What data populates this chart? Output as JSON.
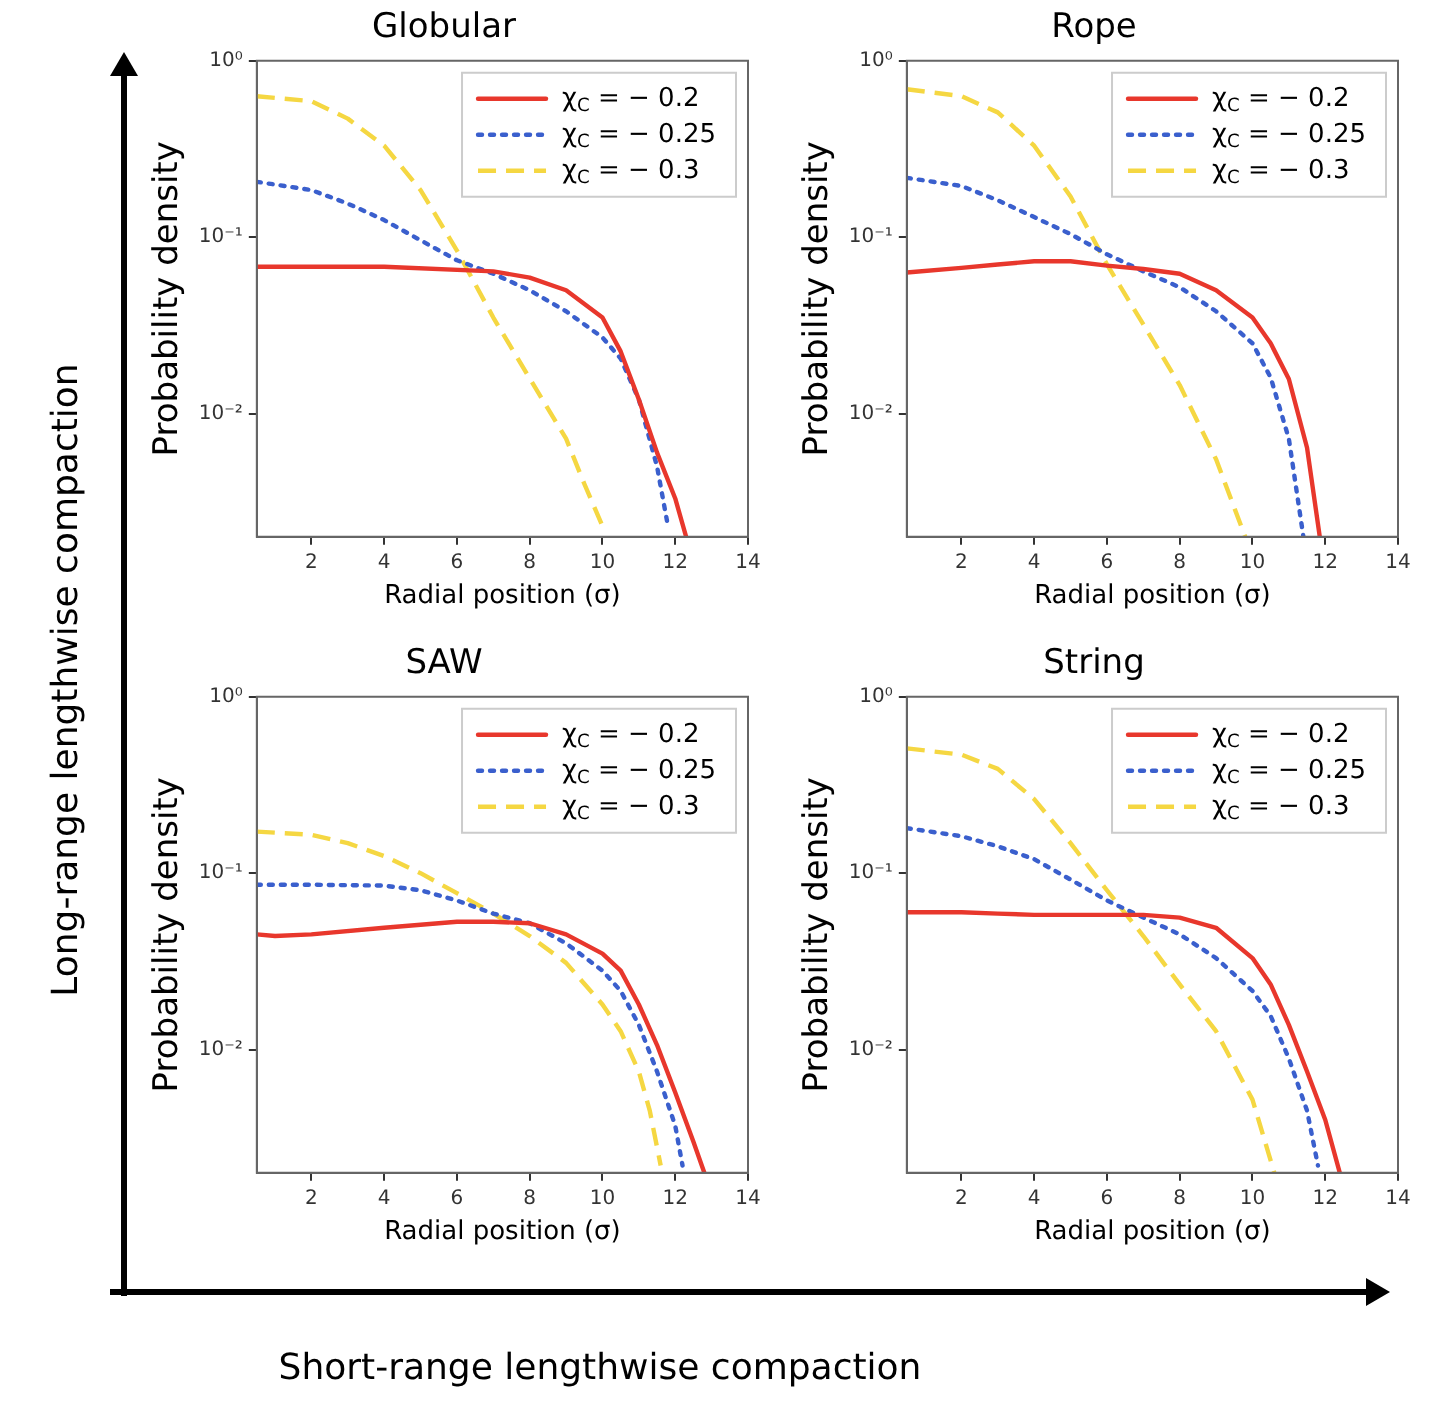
{
  "chart_data": [
    {
      "type": "line",
      "title": "Globular",
      "xlabel": "Radial position (σ)",
      "ylabel": "Probability density",
      "log": "y",
      "legend": "top right",
      "marker": "none",
      "xlim": [
        0.5,
        14
      ],
      "xticks": [
        2,
        4,
        6,
        8,
        10,
        12,
        14
      ],
      "ylim": [
        0.002,
        1
      ],
      "yticks": [
        {
          "value": 0.01,
          "label": "10⁻²"
        },
        {
          "value": 0.1,
          "label": "10⁻¹"
        },
        {
          "value": 1,
          "label": "10⁰"
        }
      ],
      "series": [
        {
          "name": "χ$_{C}$ = − 0.2",
          "color": "#e8372c",
          "line_style": "solid",
          "x": [
            0.5,
            2,
            4,
            7,
            8,
            9,
            10,
            10.5,
            11,
            11.5,
            12,
            12.3
          ],
          "values": [
            0.068,
            0.068,
            0.068,
            0.064,
            0.059,
            0.05,
            0.035,
            0.0225,
            0.012,
            0.006,
            0.0033,
            0.002
          ]
        },
        {
          "name": "χ$_{C}$ = − 0.25",
          "color": "#3a5fcd",
          "line_style": "dotted",
          "x": [
            0.5,
            2,
            3,
            4,
            5,
            6,
            7,
            8,
            9,
            10,
            10.5,
            11,
            11.5,
            11.8
          ],
          "values": [
            0.206,
            0.185,
            0.155,
            0.125,
            0.096,
            0.074,
            0.062,
            0.05,
            0.038,
            0.027,
            0.0205,
            0.012,
            0.005,
            0.0023
          ]
        },
        {
          "name": "χ$_{C}$ = − 0.3",
          "color": "#f5d742",
          "line_style": "dashed",
          "x": [
            0.5,
            2,
            3,
            4,
            5,
            6,
            7,
            8,
            9,
            9.5,
            10
          ],
          "values": [
            0.63,
            0.59,
            0.47,
            0.33,
            0.185,
            0.084,
            0.035,
            0.0158,
            0.0072,
            0.004,
            0.0023
          ]
        }
      ]
    },
    {
      "type": "line",
      "title": "Rope",
      "xlabel": "Radial position (σ)",
      "ylabel": "Probability density",
      "log": "y",
      "legend": "top right",
      "marker": "none",
      "xlim": [
        0.5,
        14
      ],
      "xticks": [
        2,
        4,
        6,
        8,
        10,
        12,
        14
      ],
      "ylim": [
        0.002,
        1
      ],
      "yticks": [
        {
          "value": 0.01,
          "label": "10⁻²"
        },
        {
          "value": 0.1,
          "label": "10⁻¹"
        },
        {
          "value": 1,
          "label": "10⁰"
        }
      ],
      "series": [
        {
          "name": "χ$_{C}$ = − 0.2",
          "color": "#e8372c",
          "line_style": "solid",
          "x": [
            0.5,
            2,
            3,
            4,
            5,
            6,
            7,
            8,
            9,
            10,
            10.5,
            11,
            11.5,
            11.85
          ],
          "values": [
            0.063,
            0.067,
            0.07,
            0.073,
            0.073,
            0.069,
            0.066,
            0.062,
            0.05,
            0.035,
            0.025,
            0.0157,
            0.0064,
            0.002
          ]
        },
        {
          "name": "χ$_{C}$ = − 0.25",
          "color": "#3a5fcd",
          "line_style": "dotted",
          "x": [
            0.5,
            2,
            3,
            4,
            5,
            6,
            7,
            8,
            9,
            10,
            10.5,
            11,
            11.4
          ],
          "values": [
            0.217,
            0.195,
            0.162,
            0.13,
            0.104,
            0.08,
            0.064,
            0.052,
            0.038,
            0.025,
            0.016,
            0.0072,
            0.002
          ]
        },
        {
          "name": "χ$_{C}$ = − 0.3",
          "color": "#f5d742",
          "line_style": "dashed",
          "x": [
            0.5,
            2,
            3,
            4,
            5,
            6,
            7,
            8,
            9,
            9.8
          ],
          "values": [
            0.69,
            0.63,
            0.51,
            0.33,
            0.17,
            0.07,
            0.032,
            0.0145,
            0.0055,
            0.002
          ]
        }
      ]
    },
    {
      "type": "line",
      "title": "SAW",
      "xlabel": "Radial position (σ)",
      "ylabel": "Probability density",
      "log": "y",
      "legend": "top right",
      "marker": "none",
      "xlim": [
        0.5,
        14
      ],
      "xticks": [
        2,
        4,
        6,
        8,
        10,
        12,
        14
      ],
      "ylim": [
        0.002,
        1
      ],
      "yticks": [
        {
          "value": 0.01,
          "label": "10⁻²"
        },
        {
          "value": 0.1,
          "label": "10⁻¹"
        },
        {
          "value": 1,
          "label": "10⁰"
        }
      ],
      "series": [
        {
          "name": "χ$_{C}$ = − 0.2",
          "color": "#e8372c",
          "line_style": "solid",
          "x": [
            0.5,
            1,
            2,
            4,
            6,
            7,
            8,
            9,
            10,
            10.5,
            11,
            11.5,
            12,
            12.5,
            12.8
          ],
          "values": [
            0.045,
            0.044,
            0.045,
            0.049,
            0.053,
            0.053,
            0.052,
            0.045,
            0.035,
            0.028,
            0.018,
            0.0106,
            0.0057,
            0.003,
            0.002
          ]
        },
        {
          "name": "χ$_{C}$ = − 0.25",
          "color": "#3a5fcd",
          "line_style": "dotted",
          "x": [
            0.5,
            2,
            4,
            5,
            6,
            7,
            8,
            9,
            10,
            10.5,
            11,
            11.5,
            12,
            12.2
          ],
          "values": [
            0.086,
            0.086,
            0.085,
            0.08,
            0.07,
            0.059,
            0.052,
            0.04,
            0.028,
            0.0215,
            0.0138,
            0.0075,
            0.0037,
            0.0022
          ]
        },
        {
          "name": "χ$_{C}$ = − 0.3",
          "color": "#f5d742",
          "line_style": "dashed",
          "x": [
            0.5,
            2,
            3,
            4,
            5,
            6,
            7,
            8,
            9,
            10,
            10.5,
            11,
            11.3,
            11.6
          ],
          "values": [
            0.172,
            0.165,
            0.148,
            0.125,
            0.1,
            0.077,
            0.059,
            0.044,
            0.031,
            0.018,
            0.0127,
            0.0075,
            0.0045,
            0.0022
          ]
        }
      ]
    },
    {
      "type": "line",
      "title": "String",
      "xlabel": "Radial position (σ)",
      "ylabel": "Probability density",
      "log": "y",
      "legend": "top right",
      "marker": "none",
      "xlim": [
        0.5,
        14
      ],
      "xticks": [
        2,
        4,
        6,
        8,
        10,
        12,
        14
      ],
      "ylim": [
        0.002,
        1
      ],
      "yticks": [
        {
          "value": 0.01,
          "label": "10⁻²"
        },
        {
          "value": 0.1,
          "label": "10⁻¹"
        },
        {
          "value": 1,
          "label": "10⁰"
        }
      ],
      "series": [
        {
          "name": "χ$_{C}$ = − 0.2",
          "color": "#e8372c",
          "line_style": "solid",
          "x": [
            0.5,
            2,
            3,
            4,
            6,
            7,
            8,
            9,
            10,
            10.5,
            11,
            11.5,
            12,
            12.4
          ],
          "values": [
            0.06,
            0.06,
            0.059,
            0.058,
            0.058,
            0.058,
            0.056,
            0.049,
            0.033,
            0.0234,
            0.0138,
            0.0075,
            0.004,
            0.002
          ]
        },
        {
          "name": "χ$_{C}$ = − 0.25",
          "color": "#3a5fcd",
          "line_style": "dotted",
          "x": [
            0.5,
            2,
            3,
            4,
            5,
            6,
            7,
            8,
            9,
            10,
            10.5,
            11,
            11.5,
            11.8
          ],
          "values": [
            0.18,
            0.162,
            0.142,
            0.12,
            0.092,
            0.07,
            0.056,
            0.045,
            0.033,
            0.0215,
            0.0155,
            0.0089,
            0.0045,
            0.0022
          ]
        },
        {
          "name": "χ$_{C}$ = − 0.3",
          "color": "#f5d742",
          "line_style": "dashed",
          "x": [
            0.5,
            2,
            3,
            4,
            5,
            6,
            7,
            8,
            9,
            10,
            10.6
          ],
          "values": [
            0.51,
            0.47,
            0.39,
            0.263,
            0.148,
            0.08,
            0.044,
            0.0234,
            0.0127,
            0.0052,
            0.002
          ]
        }
      ]
    },
    {
      "type": "other",
      "annotations": [
        "Long-range lengthwise compaction",
        "Short-range lengthwise compaction"
      ]
    }
  ]
}
